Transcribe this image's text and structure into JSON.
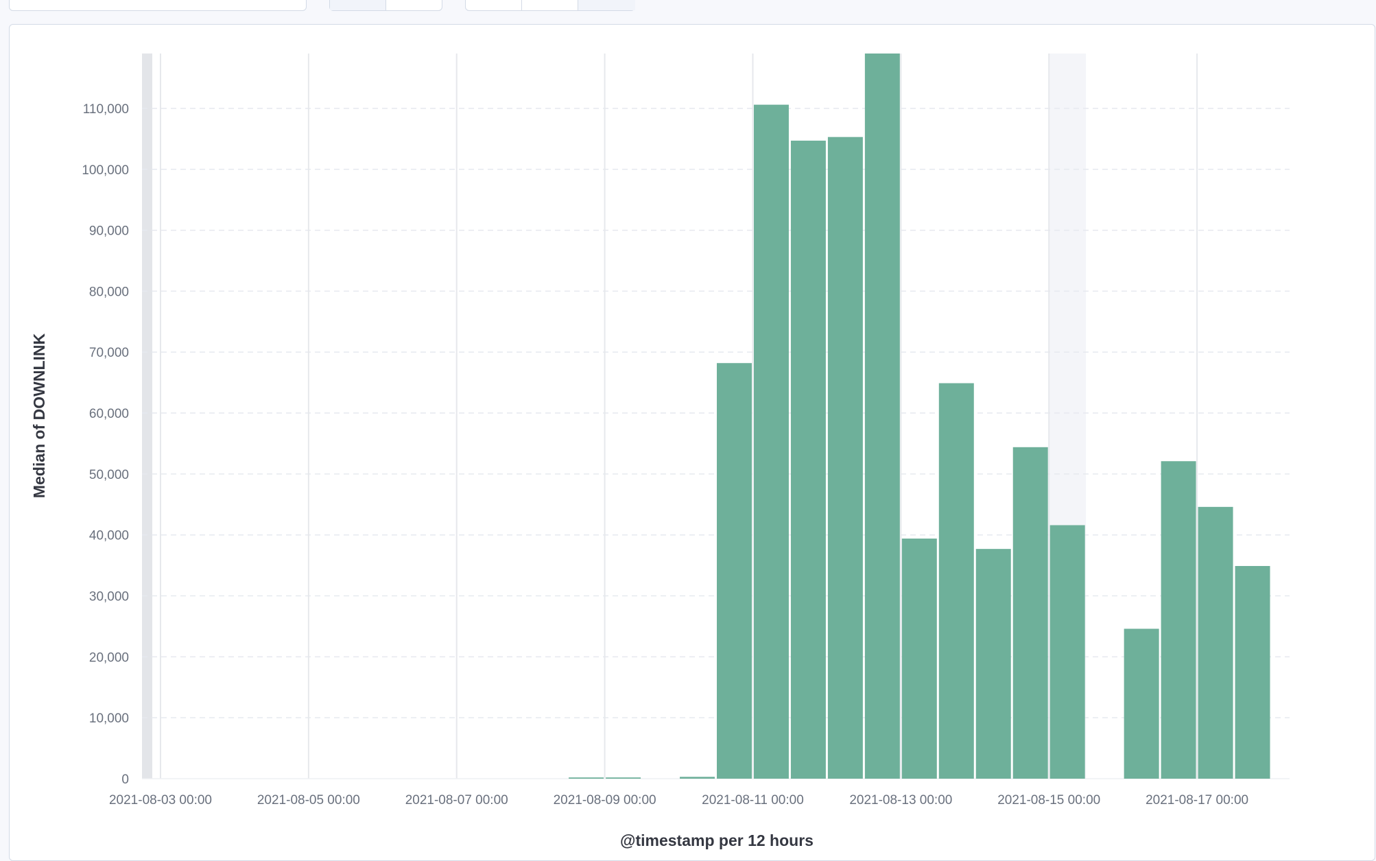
{
  "chart_data": {
    "type": "bar",
    "interval": "12 hours",
    "xlabel": "@timestamp per 12 hours",
    "ylabel": "Median of DOWNLINK",
    "ylim": [
      0,
      119000
    ],
    "yticks": [
      0,
      10000,
      20000,
      30000,
      40000,
      50000,
      60000,
      70000,
      80000,
      90000,
      100000,
      110000
    ],
    "ytick_labels": [
      "0",
      "10,000",
      "20,000",
      "30,000",
      "40,000",
      "50,000",
      "60,000",
      "70,000",
      "80,000",
      "90,000",
      "100,000",
      "110,000"
    ],
    "xticks": [
      "2021-08-03 00:00",
      "2021-08-05 00:00",
      "2021-08-07 00:00",
      "2021-08-09 00:00",
      "2021-08-11 00:00",
      "2021-08-13 00:00",
      "2021-08-15 00:00",
      "2021-08-17 00:00"
    ],
    "x_range": [
      "2021-08-02 18:00",
      "2021-08-18 06:00"
    ],
    "categories": [
      "2021-08-08 12:00",
      "2021-08-09 00:00",
      "2021-08-10 00:00",
      "2021-08-10 12:00",
      "2021-08-11 00:00",
      "2021-08-11 12:00",
      "2021-08-12 00:00",
      "2021-08-12 12:00",
      "2021-08-13 00:00",
      "2021-08-13 12:00",
      "2021-08-14 00:00",
      "2021-08-14 12:00",
      "2021-08-15 00:00",
      "2021-08-16 00:00",
      "2021-08-16 12:00",
      "2021-08-17 00:00",
      "2021-08-17 12:00"
    ],
    "values": [
      200,
      200,
      300,
      68200,
      110600,
      104700,
      105300,
      119000,
      39400,
      64900,
      37700,
      54400,
      41600,
      24600,
      52100,
      44600,
      34900
    ],
    "grid": true,
    "legend": "none",
    "bar_color": "#6eb09a",
    "highlight_band": [
      "2021-08-15 00:00",
      "2021-08-15 12:00"
    ]
  }
}
